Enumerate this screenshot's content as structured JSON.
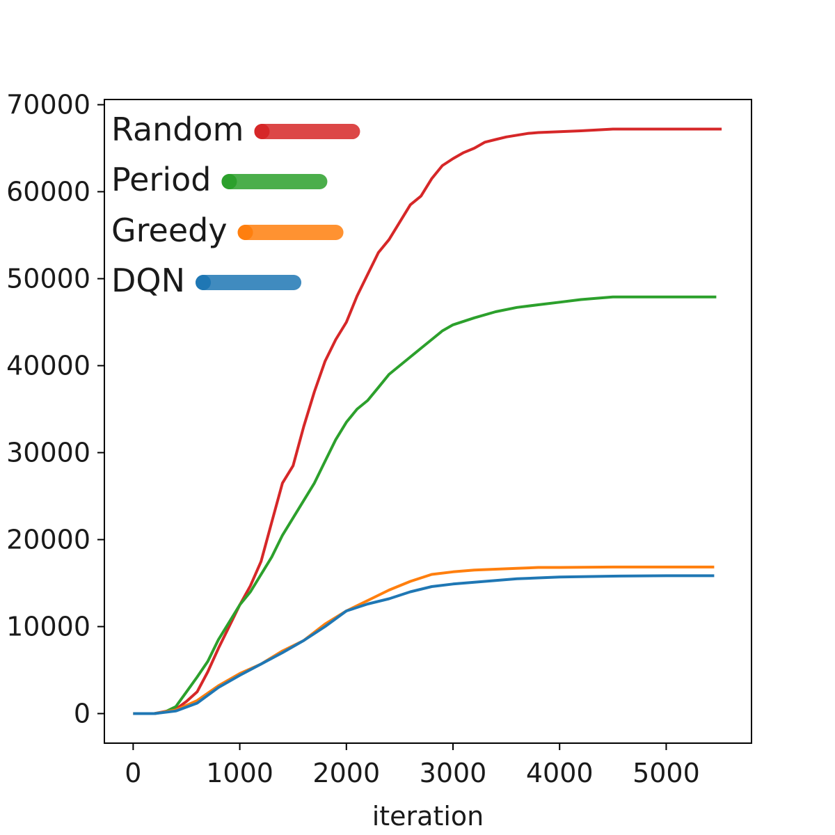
{
  "chart_data": {
    "type": "line",
    "title": "",
    "xlabel": "iteration",
    "ylabel": "",
    "xlim": [
      -270,
      5800
    ],
    "ylim": [
      -3400,
      70600
    ],
    "xticks": [
      0,
      1000,
      2000,
      3000,
      4000,
      5000
    ],
    "xtick_labels": [
      "0",
      "1000",
      "2000",
      "3000",
      "4000",
      "5000"
    ],
    "yticks": [
      0,
      10000,
      20000,
      30000,
      40000,
      50000,
      60000,
      70000
    ],
    "ytick_labels": [
      "0",
      "10000",
      "20000",
      "30000",
      "40000",
      "50000",
      "60000",
      "70000"
    ],
    "grid": false,
    "legend": "top-left",
    "series": [
      {
        "name": "Random",
        "color": "#d62728",
        "x": [
          0,
          200,
          400,
          500,
          600,
          700,
          800,
          900,
          1000,
          1100,
          1200,
          1300,
          1400,
          1500,
          1600,
          1700,
          1800,
          1900,
          2000,
          2100,
          2200,
          2300,
          2400,
          2500,
          2600,
          2700,
          2800,
          2900,
          3000,
          3100,
          3200,
          3300,
          3400,
          3500,
          3600,
          3700,
          3800,
          4000,
          4200,
          4500,
          5000,
          5520
        ],
        "y": [
          0,
          0,
          500,
          1400,
          2500,
          4800,
          7500,
          10000,
          12500,
          14700,
          17500,
          22000,
          26500,
          28500,
          33000,
          37000,
          40500,
          43000,
          45000,
          48000,
          50500,
          53000,
          54500,
          56500,
          58500,
          59500,
          61500,
          63000,
          63800,
          64500,
          65000,
          65700,
          66000,
          66300,
          66500,
          66700,
          66800,
          66900,
          67000,
          67200,
          67200,
          67200
        ]
      },
      {
        "name": "Period",
        "color": "#2ca02c",
        "x": [
          0,
          200,
          300,
          400,
          500,
          600,
          700,
          800,
          900,
          1000,
          1100,
          1200,
          1300,
          1400,
          1500,
          1600,
          1700,
          1800,
          1900,
          2000,
          2100,
          2200,
          2300,
          2400,
          2500,
          2600,
          2700,
          2800,
          2900,
          3000,
          3200,
          3400,
          3600,
          3800,
          4000,
          4200,
          4500,
          5000,
          5470
        ],
        "y": [
          0,
          0,
          200,
          800,
          2500,
          4200,
          6000,
          8500,
          10500,
          12500,
          14000,
          16000,
          18000,
          20500,
          22500,
          24500,
          26500,
          29000,
          31500,
          33500,
          35000,
          36000,
          37500,
          39000,
          40000,
          41000,
          42000,
          43000,
          44000,
          44700,
          45500,
          46200,
          46700,
          47000,
          47300,
          47600,
          47900,
          47900,
          47900
        ]
      },
      {
        "name": "Greedy",
        "color": "#ff7f0e",
        "x": [
          0,
          200,
          400,
          600,
          800,
          1000,
          1200,
          1400,
          1600,
          1800,
          2000,
          2200,
          2400,
          2600,
          2800,
          3000,
          3200,
          3400,
          3600,
          3800,
          4000,
          4500,
          5000,
          5450
        ],
        "y": [
          0,
          0,
          400,
          1500,
          3200,
          4600,
          5700,
          7200,
          8400,
          10300,
          11800,
          13000,
          14200,
          15200,
          16000,
          16300,
          16500,
          16600,
          16700,
          16800,
          16800,
          16850,
          16850,
          16850
        ]
      },
      {
        "name": "DQN",
        "color": "#1f77b4",
        "x": [
          0,
          200,
          400,
          600,
          800,
          1000,
          1200,
          1400,
          1600,
          1800,
          2000,
          2200,
          2400,
          2600,
          2800,
          3000,
          3200,
          3400,
          3600,
          3800,
          4000,
          4500,
          5000,
          5450
        ],
        "y": [
          0,
          0,
          300,
          1200,
          3000,
          4400,
          5700,
          7000,
          8400,
          10000,
          11800,
          12600,
          13200,
          14000,
          14600,
          14900,
          15100,
          15300,
          15500,
          15600,
          15700,
          15800,
          15850,
          15850
        ]
      }
    ]
  }
}
